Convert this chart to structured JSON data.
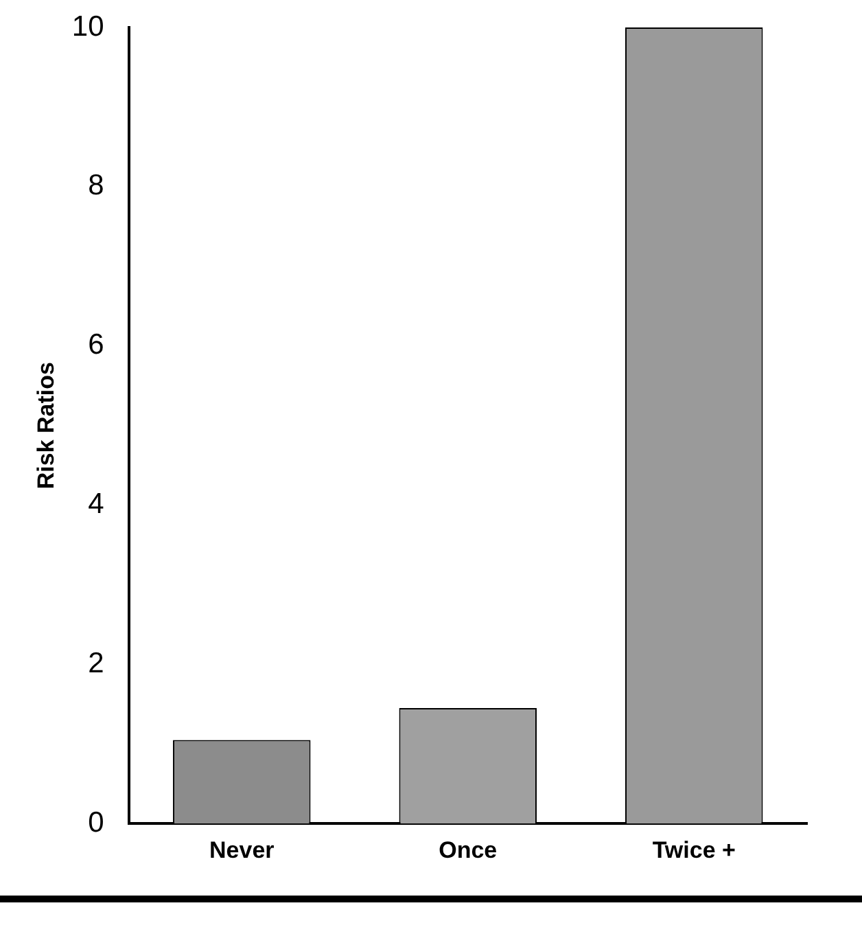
{
  "chart_data": {
    "type": "bar",
    "ylabel": "Risk Ratios",
    "categories": [
      "Never",
      "Once",
      "Twice +"
    ],
    "values": [
      1.05,
      1.45,
      10
    ],
    "colors": [
      "#8c8c8c",
      "#a0a0a0",
      "#9a9a9a"
    ],
    "ylim": [
      0,
      10
    ],
    "yticks": [
      0,
      2,
      4,
      6,
      8,
      10
    ],
    "grid": false,
    "legend": false
  }
}
